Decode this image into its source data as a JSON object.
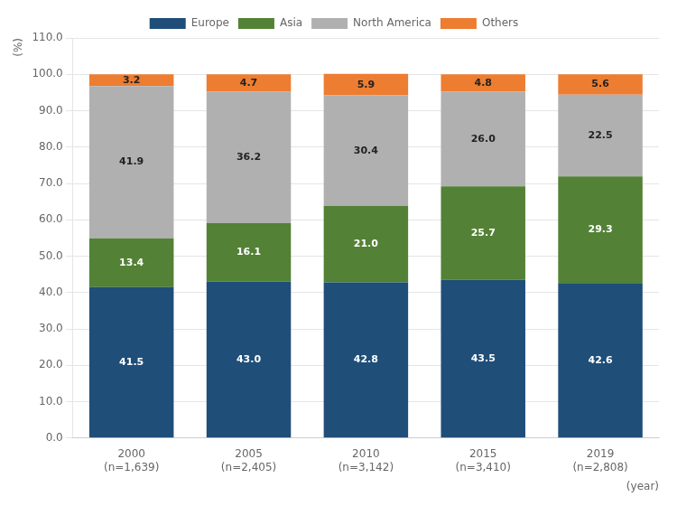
{
  "chart_data": {
    "type": "bar",
    "stacked": true,
    "data_labels": true,
    "grid": true,
    "legend": "top",
    "ylabel": "(%)",
    "xlabel": "(year)",
    "categories": [
      "2000",
      "2005",
      "2010",
      "2015",
      "2019"
    ],
    "annotations": [
      {
        "category": "2000",
        "text": "(n=1,639)"
      },
      {
        "category": "2005",
        "text": "(n=2,405)"
      },
      {
        "category": "2010",
        "text": "(n=3,142)"
      },
      {
        "category": "2015",
        "text": "(n=3,410)"
      },
      {
        "category": "2019",
        "text": "(n=2,808)"
      }
    ],
    "series": [
      {
        "name": "Europe",
        "color": "#1f4e79",
        "values": [
          41.5,
          43.0,
          42.8,
          43.5,
          42.6
        ],
        "value_labels": [
          "41.5",
          "43.0",
          "42.8",
          "43.5",
          "42.6"
        ]
      },
      {
        "name": "Asia",
        "color": "#538135",
        "values": [
          13.4,
          16.1,
          21.0,
          25.7,
          29.3
        ],
        "value_labels": [
          "13.4",
          "16.1",
          "21.0",
          "25.7",
          "29.3"
        ]
      },
      {
        "name": "North America",
        "color": "#b0b0b0",
        "values": [
          41.9,
          36.2,
          30.4,
          26.0,
          22.5
        ],
        "value_labels": [
          "41.9",
          "36.2",
          "30.4",
          "26.0",
          "22.5"
        ]
      },
      {
        "name": "Others",
        "color": "#ed7d31",
        "values": [
          3.2,
          4.7,
          5.9,
          4.8,
          5.6
        ],
        "value_labels": [
          "3.2",
          "4.7",
          "5.9",
          "4.8",
          "5.6"
        ]
      }
    ],
    "ylim": [
      0,
      110
    ],
    "yticks": [
      {
        "value": 0,
        "label": "0.0"
      },
      {
        "value": 10,
        "label": "10.0"
      },
      {
        "value": 20,
        "label": "20.0"
      },
      {
        "value": 30,
        "label": "30.0"
      },
      {
        "value": 40,
        "label": "40.0"
      },
      {
        "value": 50,
        "label": "50.0"
      },
      {
        "value": 60,
        "label": "60.0"
      },
      {
        "value": 70,
        "label": "70.0"
      },
      {
        "value": 80,
        "label": "80.0"
      },
      {
        "value": 90,
        "label": "90.0"
      },
      {
        "value": 100,
        "label": "100.0"
      },
      {
        "value": 110,
        "label": "110.0"
      }
    ]
  }
}
